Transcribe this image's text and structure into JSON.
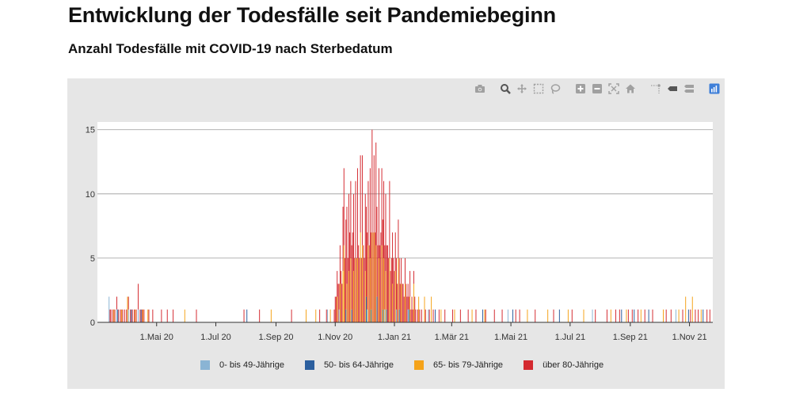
{
  "page": {
    "title": "Entwicklung der Todesfälle seit Pandemiebeginn",
    "subtitle": "Anzahl Todesfälle mit COVID-19 nach Sterbedatum"
  },
  "modebar": {
    "icons": [
      "camera-icon",
      "zoom-icon",
      "pan-icon",
      "box-select-icon",
      "lasso-icon",
      "zoom-in-icon",
      "zoom-out-icon",
      "autoscale-icon",
      "reset-axes-icon",
      "spike-lines-icon",
      "hover-closest-icon",
      "hover-compare-icon",
      "plotly-logo-icon"
    ],
    "active_color": "#3e7fd8",
    "icon_color": "#a0a0a0"
  },
  "chart_data": {
    "type": "bar",
    "stacked": true,
    "title": "Anzahl Todesfälle mit COVID-19 nach Sterbedatum",
    "xlabel": "",
    "ylabel": "",
    "x_range": [
      "2020-03-01",
      "2021-11-25"
    ],
    "ylim": [
      0,
      15.6
    ],
    "y_ticks": [
      0,
      5,
      10,
      15
    ],
    "x_ticks": [
      {
        "date": "2020-05-01",
        "label": "1.Mai 20"
      },
      {
        "date": "2020-07-01",
        "label": "1.Jul 20"
      },
      {
        "date": "2020-09-01",
        "label": "1.Sep 20"
      },
      {
        "date": "2020-11-01",
        "label": "1.Nov 20"
      },
      {
        "date": "2021-01-01",
        "label": "1.Jan 21"
      },
      {
        "date": "2021-03-01",
        "label": "1.Mär 21"
      },
      {
        "date": "2021-05-01",
        "label": "1.Mai 21"
      },
      {
        "date": "2021-07-01",
        "label": "1.Jul 21"
      },
      {
        "date": "2021-09-01",
        "label": "1.Sep 21"
      },
      {
        "date": "2021-11-01",
        "label": "1.Nov 21"
      }
    ],
    "grid": true,
    "legend_position": "bottom",
    "series": [
      {
        "name": "0- bis 49-Jährige",
        "color": "#8ab4d4",
        "points": [
          [
            "2020-03-13",
            2
          ],
          [
            "2020-03-21",
            1
          ],
          [
            "2020-04-02",
            1
          ],
          [
            "2020-04-12",
            1
          ],
          [
            "2020-10-24",
            1
          ],
          [
            "2020-11-05",
            1
          ],
          [
            "2020-12-04",
            1
          ],
          [
            "2020-12-22",
            1
          ],
          [
            "2021-01-03",
            1
          ],
          [
            "2021-01-15",
            1
          ],
          [
            "2021-02-05",
            1
          ],
          [
            "2021-04-28",
            1
          ],
          [
            "2021-07-24",
            1
          ],
          [
            "2021-10-18",
            1
          ]
        ]
      },
      {
        "name": "50- bis 64-Jährige",
        "color": "#2c5f9e",
        "points": [
          [
            "2020-03-22",
            1
          ],
          [
            "2020-04-05",
            1
          ],
          [
            "2020-04-15",
            1
          ],
          [
            "2020-08-02",
            1
          ],
          [
            "2020-11-12",
            1
          ],
          [
            "2020-11-18",
            1
          ],
          [
            "2020-12-03",
            2
          ],
          [
            "2020-12-08",
            1
          ],
          [
            "2020-12-14",
            2
          ],
          [
            "2020-12-20",
            1
          ],
          [
            "2020-12-24",
            1
          ],
          [
            "2021-01-06",
            1
          ],
          [
            "2021-01-16",
            1
          ],
          [
            "2021-02-12",
            1
          ],
          [
            "2021-04-02",
            1
          ],
          [
            "2021-05-03",
            1
          ],
          [
            "2021-06-20",
            1
          ],
          [
            "2021-08-23",
            1
          ],
          [
            "2021-09-05",
            1
          ],
          [
            "2021-09-20",
            1
          ],
          [
            "2021-10-31",
            1
          ],
          [
            "2021-11-15",
            1
          ]
        ]
      },
      {
        "name": "65- bis 79-Jährige",
        "color": "#f5a31a",
        "points": [
          [
            "2020-03-18",
            1
          ],
          [
            "2020-03-26",
            1
          ],
          [
            "2020-04-01",
            2
          ],
          [
            "2020-04-09",
            1
          ],
          [
            "2020-04-17",
            1
          ],
          [
            "2020-04-22",
            1
          ],
          [
            "2020-05-30",
            1
          ],
          [
            "2020-08-27",
            1
          ],
          [
            "2020-10-02",
            1
          ],
          [
            "2020-10-12",
            1
          ],
          [
            "2020-10-27",
            1
          ],
          [
            "2020-11-03",
            2
          ],
          [
            "2020-11-06",
            3
          ],
          [
            "2020-11-09",
            4
          ],
          [
            "2020-11-10",
            6
          ],
          [
            "2020-11-13",
            3
          ],
          [
            "2020-11-15",
            4
          ],
          [
            "2020-11-17",
            5
          ],
          [
            "2020-11-20",
            4
          ],
          [
            "2020-11-22",
            5
          ],
          [
            "2020-11-24",
            5
          ],
          [
            "2020-11-27",
            7
          ],
          [
            "2020-11-29",
            6
          ],
          [
            "2020-12-02",
            4
          ],
          [
            "2020-12-05",
            6
          ],
          [
            "2020-12-07",
            5
          ],
          [
            "2020-12-09",
            7
          ],
          [
            "2020-12-11",
            7
          ],
          [
            "2020-12-13",
            6
          ],
          [
            "2020-12-16",
            5
          ],
          [
            "2020-12-19",
            6
          ],
          [
            "2020-12-21",
            5
          ],
          [
            "2020-12-23",
            4
          ],
          [
            "2020-12-27",
            5
          ],
          [
            "2020-12-30",
            3
          ],
          [
            "2021-01-02",
            4
          ],
          [
            "2021-01-05",
            5
          ],
          [
            "2021-01-08",
            3
          ],
          [
            "2021-01-12",
            3
          ],
          [
            "2021-01-17",
            2
          ],
          [
            "2021-01-21",
            3
          ],
          [
            "2021-01-26",
            2
          ],
          [
            "2021-02-01",
            2
          ],
          [
            "2021-02-08",
            2
          ],
          [
            "2021-02-18",
            1
          ],
          [
            "2021-03-04",
            1
          ],
          [
            "2021-03-22",
            1
          ],
          [
            "2021-04-04",
            1
          ],
          [
            "2021-05-18",
            1
          ],
          [
            "2021-06-08",
            1
          ],
          [
            "2021-06-29",
            1
          ],
          [
            "2021-07-15",
            1
          ],
          [
            "2021-08-12",
            1
          ],
          [
            "2021-08-28",
            1
          ],
          [
            "2021-09-12",
            1
          ],
          [
            "2021-10-05",
            1
          ],
          [
            "2021-10-21",
            1
          ],
          [
            "2021-10-28",
            2
          ],
          [
            "2021-11-04",
            2
          ],
          [
            "2021-11-13",
            1
          ]
        ]
      },
      {
        "name": "über 80-Jährige",
        "color": "#d42a30",
        "points": [
          [
            "2020-03-14",
            1
          ],
          [
            "2020-03-15",
            1
          ],
          [
            "2020-03-17",
            1
          ],
          [
            "2020-03-19",
            1
          ],
          [
            "2020-03-21",
            1
          ],
          [
            "2020-03-23",
            1
          ],
          [
            "2020-03-25",
            1
          ],
          [
            "2020-03-27",
            1
          ],
          [
            "2020-03-29",
            1
          ],
          [
            "2020-03-31",
            1
          ],
          [
            "2020-04-02",
            1
          ],
          [
            "2020-04-04",
            1
          ],
          [
            "2020-04-06",
            1
          ],
          [
            "2020-04-08",
            1
          ],
          [
            "2020-04-10",
            1
          ],
          [
            "2020-04-12",
            2
          ],
          [
            "2020-04-14",
            1
          ],
          [
            "2020-04-16",
            1
          ],
          [
            "2020-04-18",
            1
          ],
          [
            "2020-04-23",
            1
          ],
          [
            "2020-04-27",
            1
          ],
          [
            "2020-05-06",
            1
          ],
          [
            "2020-05-12",
            1
          ],
          [
            "2020-05-18",
            1
          ],
          [
            "2020-06-11",
            1
          ],
          [
            "2020-07-30",
            1
          ],
          [
            "2020-08-15",
            1
          ],
          [
            "2020-09-17",
            1
          ],
          [
            "2020-10-16",
            1
          ],
          [
            "2020-10-23",
            1
          ],
          [
            "2020-10-31",
            1
          ],
          [
            "2020-11-01",
            2
          ],
          [
            "2020-11-02",
            2
          ],
          [
            "2020-11-03",
            2
          ],
          [
            "2020-11-04",
            3
          ],
          [
            "2020-11-05",
            2
          ],
          [
            "2020-11-06",
            3
          ],
          [
            "2020-11-07",
            4
          ],
          [
            "2020-11-08",
            3
          ],
          [
            "2020-11-09",
            5
          ],
          [
            "2020-11-10",
            6
          ],
          [
            "2020-11-11",
            5
          ],
          [
            "2020-11-12",
            7
          ],
          [
            "2020-11-13",
            6
          ],
          [
            "2020-11-14",
            5
          ],
          [
            "2020-11-15",
            6
          ],
          [
            "2020-11-16",
            7
          ],
          [
            "2020-11-17",
            6
          ],
          [
            "2020-11-18",
            5
          ],
          [
            "2020-11-19",
            7
          ],
          [
            "2020-11-20",
            6
          ],
          [
            "2020-11-21",
            5
          ],
          [
            "2020-11-22",
            6
          ],
          [
            "2020-11-23",
            5
          ],
          [
            "2020-11-24",
            7
          ],
          [
            "2020-11-25",
            6
          ],
          [
            "2020-11-26",
            5
          ],
          [
            "2020-11-27",
            6
          ],
          [
            "2020-11-28",
            5
          ],
          [
            "2020-11-29",
            7
          ],
          [
            "2020-11-30",
            6
          ],
          [
            "2020-12-01",
            5
          ],
          [
            "2020-12-02",
            6
          ],
          [
            "2020-12-03",
            7
          ],
          [
            "2020-12-04",
            6
          ],
          [
            "2020-12-05",
            5
          ],
          [
            "2020-12-06",
            6
          ],
          [
            "2020-12-07",
            7
          ],
          [
            "2020-12-08",
            6
          ],
          [
            "2020-12-09",
            8
          ],
          [
            "2020-12-10",
            7
          ],
          [
            "2020-12-11",
            6
          ],
          [
            "2020-12-12",
            7
          ],
          [
            "2020-12-13",
            8
          ],
          [
            "2020-12-14",
            7
          ],
          [
            "2020-12-15",
            6
          ],
          [
            "2020-12-16",
            7
          ],
          [
            "2020-12-17",
            6
          ],
          [
            "2020-12-18",
            7
          ],
          [
            "2020-12-19",
            6
          ],
          [
            "2020-12-20",
            7
          ],
          [
            "2020-12-21",
            6
          ],
          [
            "2020-12-22",
            5
          ],
          [
            "2020-12-23",
            6
          ],
          [
            "2020-12-24",
            5
          ],
          [
            "2020-12-25",
            6
          ],
          [
            "2020-12-26",
            5
          ],
          [
            "2020-12-27",
            6
          ],
          [
            "2020-12-28",
            4
          ],
          [
            "2020-12-29",
            5
          ],
          [
            "2020-12-30",
            4
          ],
          [
            "2020-12-31",
            5
          ],
          [
            "2021-01-01",
            4
          ],
          [
            "2021-01-02",
            3
          ],
          [
            "2021-01-03",
            4
          ],
          [
            "2021-01-04",
            3
          ],
          [
            "2021-01-05",
            3
          ],
          [
            "2021-01-06",
            4
          ],
          [
            "2021-01-07",
            3
          ],
          [
            "2021-01-08",
            2
          ],
          [
            "2021-01-09",
            3
          ],
          [
            "2021-01-10",
            3
          ],
          [
            "2021-01-11",
            2
          ],
          [
            "2021-01-12",
            2
          ],
          [
            "2021-01-13",
            3
          ],
          [
            "2021-01-14",
            2
          ],
          [
            "2021-01-15",
            2
          ],
          [
            "2021-01-16",
            1
          ],
          [
            "2021-01-17",
            2
          ],
          [
            "2021-01-18",
            1
          ],
          [
            "2021-01-19",
            2
          ],
          [
            "2021-01-20",
            1
          ],
          [
            "2021-01-21",
            1
          ],
          [
            "2021-01-22",
            2
          ],
          [
            "2021-01-23",
            1
          ],
          [
            "2021-01-25",
            1
          ],
          [
            "2021-01-27",
            1
          ],
          [
            "2021-01-29",
            1
          ],
          [
            "2021-02-02",
            1
          ],
          [
            "2021-02-06",
            1
          ],
          [
            "2021-02-10",
            1
          ],
          [
            "2021-02-16",
            1
          ],
          [
            "2021-02-22",
            1
          ],
          [
            "2021-03-02",
            1
          ],
          [
            "2021-03-10",
            1
          ],
          [
            "2021-03-18",
            1
          ],
          [
            "2021-03-26",
            1
          ],
          [
            "2021-04-05",
            1
          ],
          [
            "2021-04-14",
            1
          ],
          [
            "2021-04-22",
            1
          ],
          [
            "2021-05-06",
            1
          ],
          [
            "2021-05-10",
            1
          ],
          [
            "2021-05-26",
            1
          ],
          [
            "2021-06-14",
            1
          ],
          [
            "2021-07-03",
            1
          ],
          [
            "2021-07-27",
            1
          ],
          [
            "2021-08-08",
            1
          ],
          [
            "2021-08-17",
            1
          ],
          [
            "2021-08-21",
            1
          ],
          [
            "2021-08-30",
            1
          ],
          [
            "2021-09-03",
            1
          ],
          [
            "2021-09-09",
            1
          ],
          [
            "2021-09-16",
            1
          ],
          [
            "2021-09-24",
            1
          ],
          [
            "2021-10-08",
            1
          ],
          [
            "2021-10-13",
            1
          ],
          [
            "2021-10-25",
            1
          ],
          [
            "2021-11-02",
            1
          ],
          [
            "2021-11-07",
            1
          ],
          [
            "2021-11-10",
            1
          ],
          [
            "2021-11-19",
            1
          ],
          [
            "2021-11-22",
            1
          ]
        ]
      }
    ]
  }
}
